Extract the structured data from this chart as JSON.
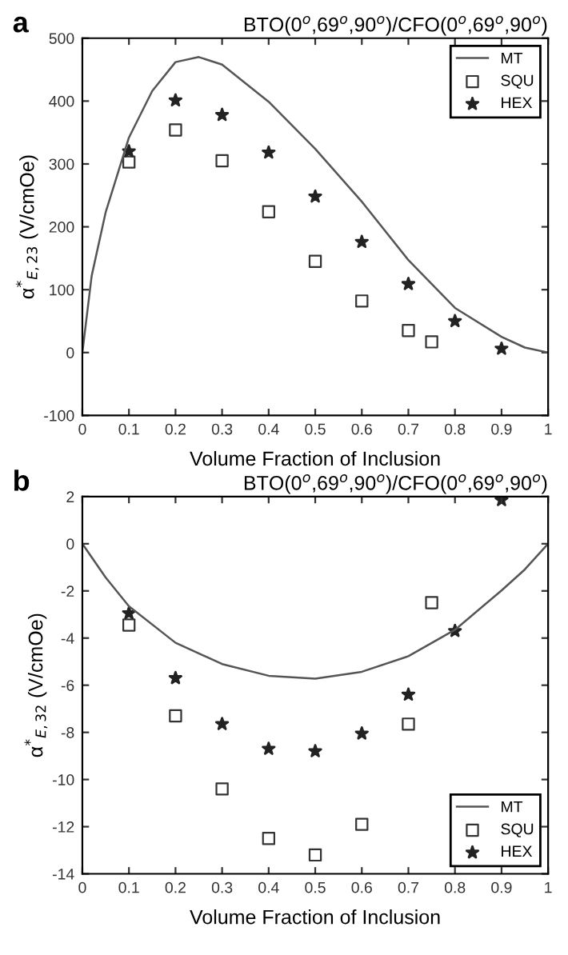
{
  "chart_data": [
    {
      "type": "line",
      "title": "BTO(0$^{o}$,69$^{o}$,90$^{o}$)/CFO(0$^{o}$,69$^{o}$,90$^{o}$)",
      "xlabel": "Volume Fraction of Inclusion",
      "ylabel": "α$^{*}$$_{E,23}$ (V/cmOe)",
      "annotations": [
        "a"
      ],
      "xlim": [
        0,
        1
      ],
      "ylim": [
        -100,
        500
      ],
      "xticks": [
        0,
        0.1,
        0.2,
        0.3,
        0.4,
        0.5,
        0.6,
        0.7,
        0.8,
        0.9,
        1
      ],
      "yticks": [
        -100,
        0,
        100,
        200,
        300,
        400,
        500
      ],
      "grid": false,
      "legend": "top right",
      "series": [
        {
          "name": "MT",
          "color": "#555555",
          "marker": "none",
          "line_style": "solid",
          "x": [
            0,
            0.02,
            0.05,
            0.1,
            0.15,
            0.2,
            0.25,
            0.3,
            0.4,
            0.5,
            0.6,
            0.7,
            0.8,
            0.9,
            0.95,
            1
          ],
          "values": [
            0,
            122,
            223,
            342,
            416,
            462,
            470,
            458,
            399,
            324,
            240,
            147,
            71,
            25,
            8,
            0
          ]
        },
        {
          "name": "SQU",
          "type": "scatter",
          "color": "#333333",
          "marker": "square",
          "x": [
            0.1,
            0.2,
            0.3,
            0.4,
            0.5,
            0.6,
            0.7,
            0.75
          ],
          "values": [
            303,
            354,
            305,
            224,
            145,
            82,
            35,
            17
          ]
        },
        {
          "name": "HEX",
          "type": "scatter",
          "color": "#222222",
          "marker": "star",
          "x": [
            0.1,
            0.2,
            0.3,
            0.4,
            0.5,
            0.6,
            0.7,
            0.8,
            0.9
          ],
          "values": [
            320,
            401,
            378,
            318,
            248,
            176,
            109,
            50,
            6
          ]
        }
      ]
    },
    {
      "type": "line",
      "title": "BTO(0$^{o}$,69$^{o}$,90$^{o}$)/CFO(0$^{o}$,69$^{o}$,90$^{o}$)",
      "xlabel": "Volume Fraction of Inclusion",
      "ylabel": "α$^{*}$$_{E,32}$ (V/cmOe)",
      "annotations": [
        "b"
      ],
      "xlim": [
        0,
        1
      ],
      "ylim": [
        -14,
        2
      ],
      "xticks": [
        0,
        0.1,
        0.2,
        0.3,
        0.4,
        0.5,
        0.6,
        0.7,
        0.8,
        0.9,
        1
      ],
      "yticks": [
        -14,
        -12,
        -10,
        -8,
        -6,
        -4,
        -2,
        0,
        2
      ],
      "grid": false,
      "legend": "bottom right",
      "series": [
        {
          "name": "MT",
          "color": "#555555",
          "marker": "none",
          "line_style": "solid",
          "x": [
            0,
            0.05,
            0.1,
            0.2,
            0.3,
            0.4,
            0.5,
            0.6,
            0.7,
            0.8,
            0.9,
            0.95,
            1
          ],
          "values": [
            0,
            -1.43,
            -2.65,
            -4.2,
            -5.1,
            -5.6,
            -5.72,
            -5.43,
            -4.77,
            -3.65,
            -1.98,
            -1.09,
            0
          ]
        },
        {
          "name": "SQU",
          "type": "scatter",
          "color": "#333333",
          "marker": "square",
          "x": [
            0.1,
            0.2,
            0.3,
            0.4,
            0.5,
            0.6,
            0.7,
            0.75
          ],
          "values": [
            -3.45,
            -7.3,
            -10.4,
            -12.5,
            -13.2,
            -11.9,
            -7.65,
            -2.5
          ]
        },
        {
          "name": "HEX",
          "type": "scatter",
          "color": "#222222",
          "marker": "star",
          "x": [
            0.1,
            0.2,
            0.3,
            0.4,
            0.5,
            0.6,
            0.7,
            0.8,
            0.9
          ],
          "values": [
            -2.95,
            -5.7,
            -7.65,
            -8.7,
            -8.8,
            -8.05,
            -6.4,
            -3.7,
            1.85
          ]
        }
      ]
    }
  ]
}
